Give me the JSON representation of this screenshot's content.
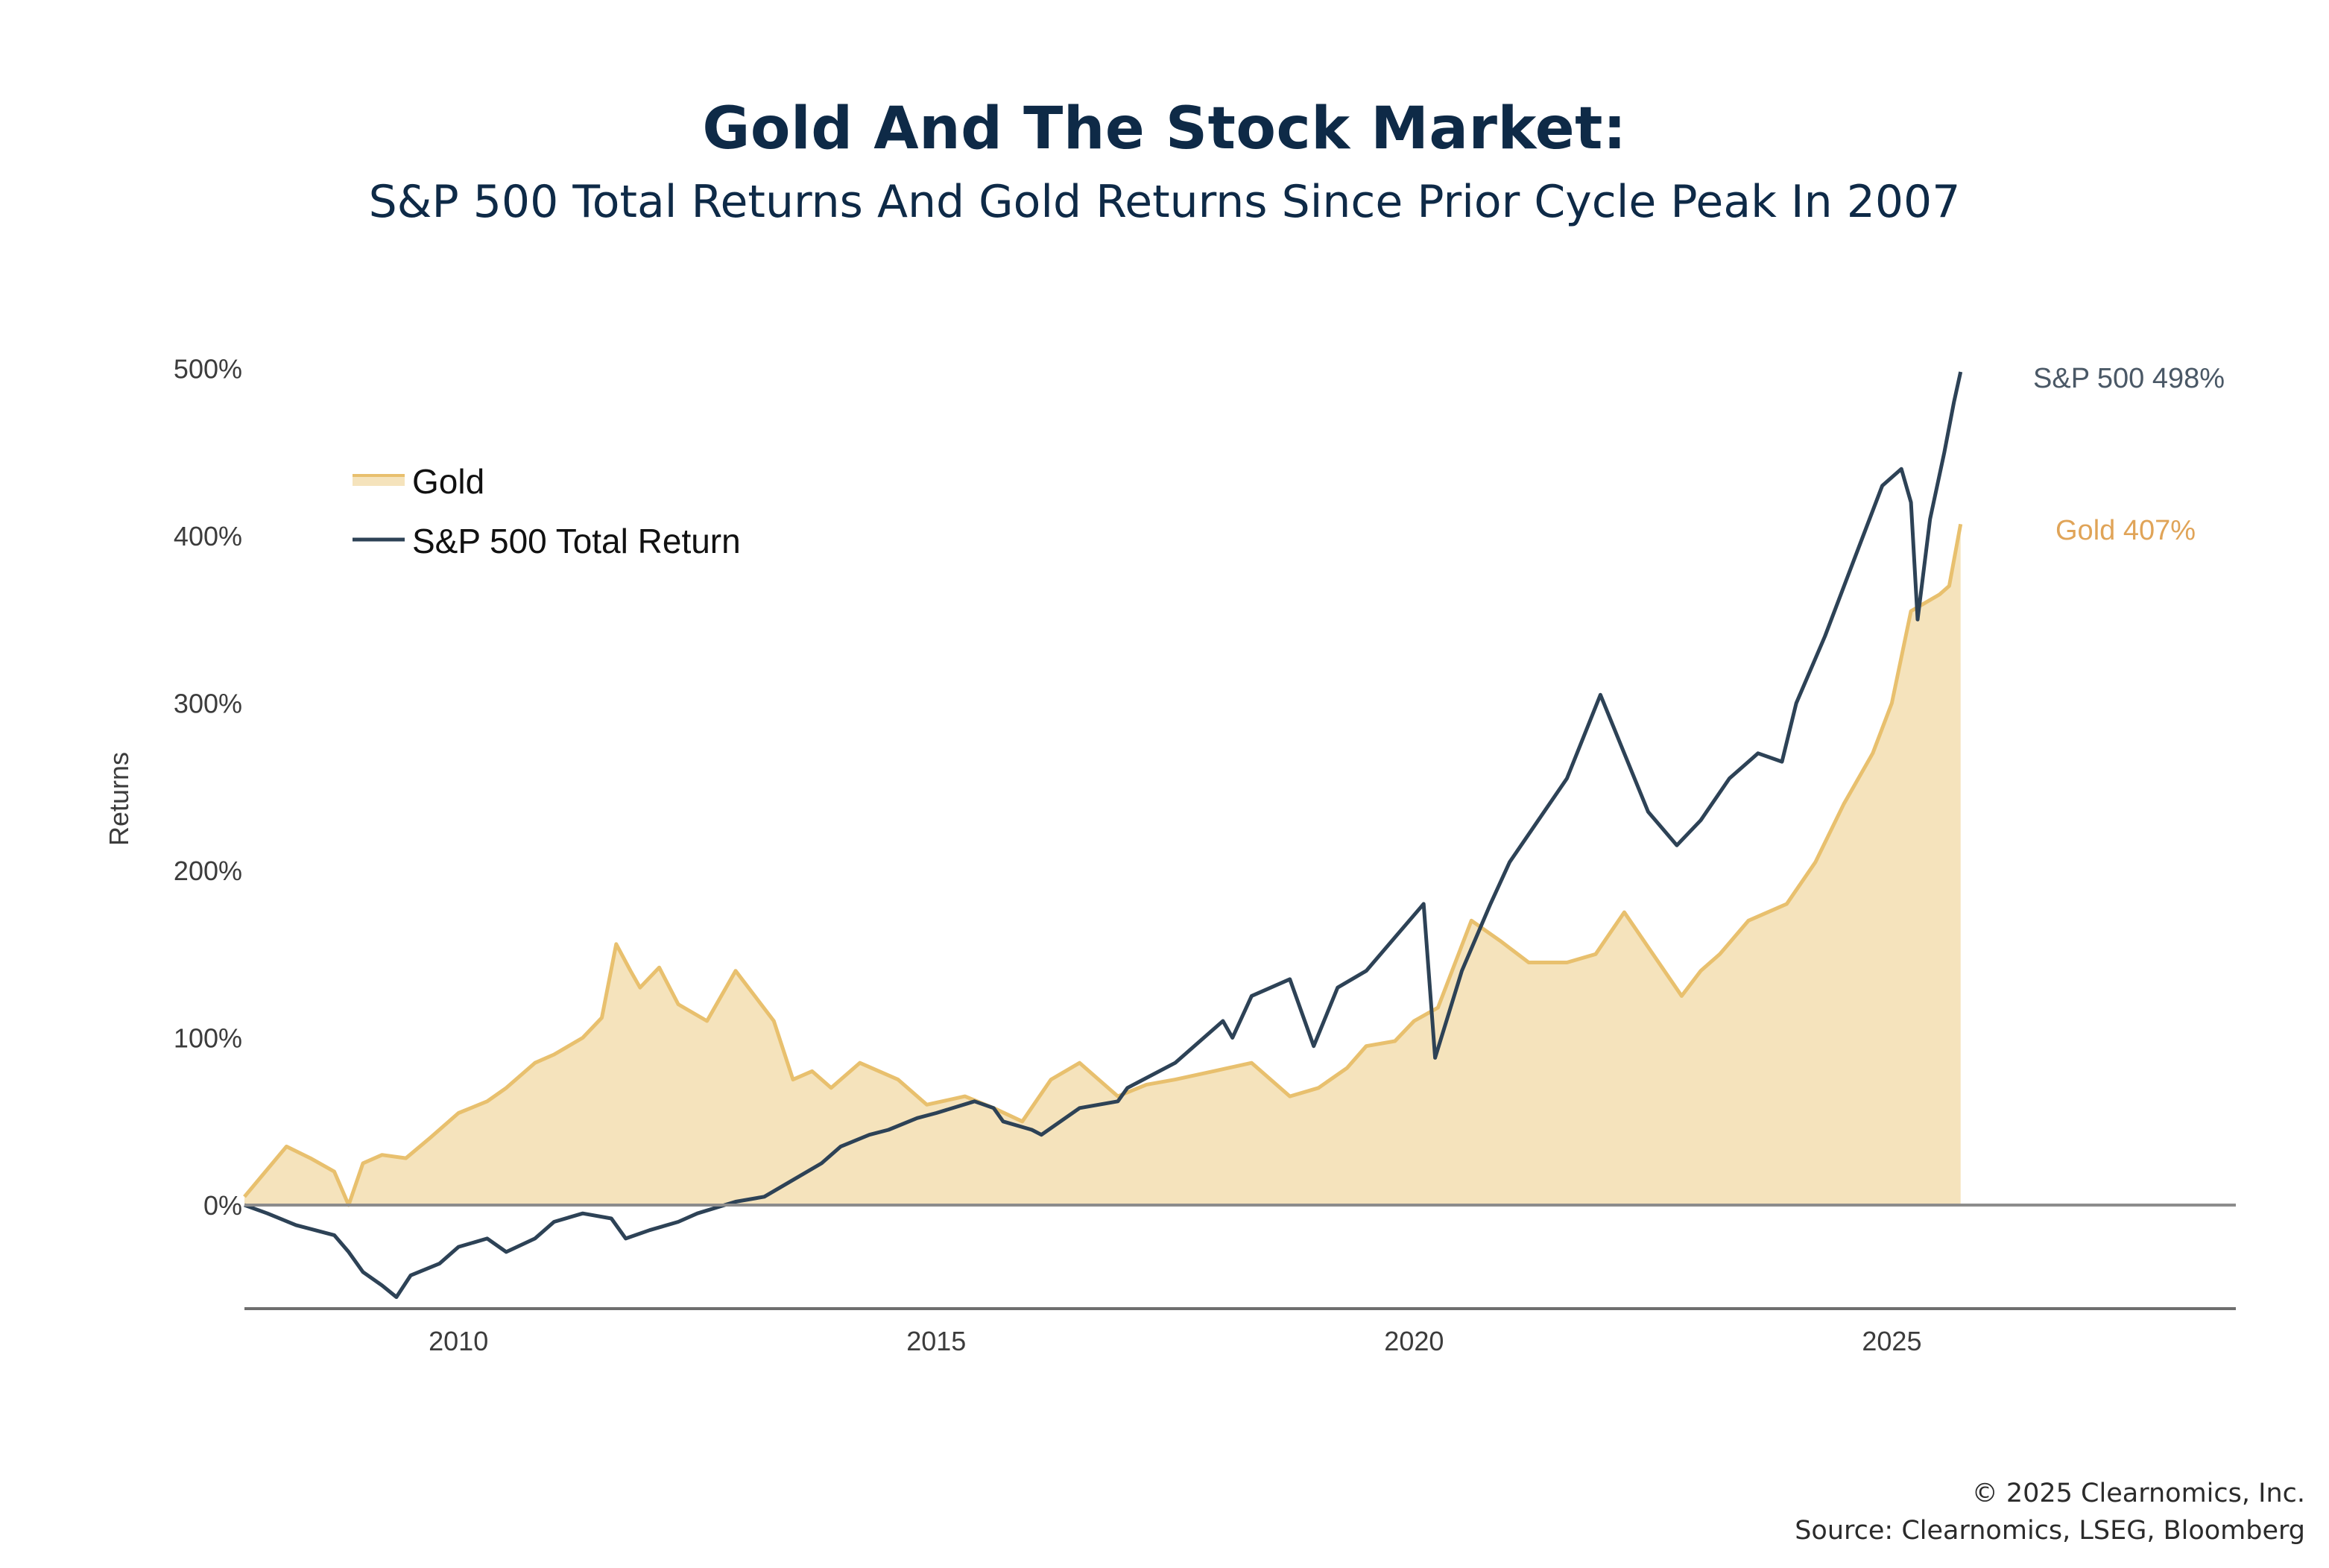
{
  "chart_data": {
    "type": "area",
    "title": "Gold And The Stock Market:",
    "subtitle": "S&P 500 Total Returns And Gold Returns Since Prior Cycle Peak In 2007",
    "xlabel": "",
    "ylabel": "Returns",
    "xlim": [
      2007.76,
      2028.6
    ],
    "ylim": [
      -58,
      520
    ],
    "x_ticks": [
      2010,
      2015,
      2020,
      2025
    ],
    "x_tick_labels": [
      "2010",
      "2015",
      "2020",
      "2025"
    ],
    "y_ticks": [
      0,
      100,
      200,
      300,
      400,
      500
    ],
    "y_tick_labels": [
      "0%",
      "100%",
      "200%",
      "300%",
      "400%",
      "500%"
    ],
    "grid": false,
    "legend": {
      "placement": "top-left",
      "entries": [
        "Gold",
        "S&P 500 Total Return"
      ]
    },
    "series": [
      {
        "name": "Gold",
        "kind": "area",
        "color": "#e8c06e",
        "fill": "#f5e3bc",
        "end_label": "Gold 407%",
        "end_label_color": "#e0a458",
        "x": [
          2007.76,
          2007.95,
          2008.2,
          2008.45,
          2008.7,
          2008.85,
          2009.0,
          2009.2,
          2009.45,
          2009.7,
          2010.0,
          2010.3,
          2010.5,
          2010.8,
          2011.0,
          2011.3,
          2011.5,
          2011.65,
          2011.8,
          2011.9,
          2012.1,
          2012.3,
          2012.6,
          2012.9,
          2013.1,
          2013.3,
          2013.5,
          2013.7,
          2013.9,
          2014.2,
          2014.6,
          2014.9,
          2015.3,
          2015.6,
          2015.9,
          2016.2,
          2016.5,
          2016.9,
          2017.2,
          2017.5,
          2017.9,
          2018.3,
          2018.7,
          2019.0,
          2019.3,
          2019.5,
          2019.8,
          2020.0,
          2020.25,
          2020.6,
          2020.9,
          2021.2,
          2021.6,
          2021.9,
          2022.2,
          2022.5,
          2022.8,
          2023.0,
          2023.2,
          2023.5,
          2023.9,
          2024.2,
          2024.5,
          2024.8,
          2025.0,
          2025.2,
          2025.35,
          2025.5,
          2025.6,
          2025.72
        ],
        "values": [
          5,
          18,
          35,
          28,
          20,
          0,
          25,
          30,
          28,
          40,
          55,
          62,
          70,
          85,
          90,
          100,
          112,
          156,
          140,
          130,
          142,
          120,
          110,
          140,
          125,
          110,
          75,
          80,
          70,
          85,
          75,
          60,
          65,
          58,
          50,
          75,
          85,
          65,
          72,
          75,
          80,
          85,
          65,
          70,
          82,
          95,
          98,
          110,
          118,
          170,
          158,
          145,
          145,
          150,
          175,
          150,
          125,
          140,
          150,
          170,
          180,
          205,
          240,
          270,
          300,
          355,
          360,
          365,
          370,
          407
        ]
      },
      {
        "name": "S&P 500 Total Return",
        "kind": "line",
        "color": "#2d4256",
        "end_label": "S&P 500 498%",
        "end_label_color": "#4a5866",
        "x": [
          2007.76,
          2008.0,
          2008.3,
          2008.5,
          2008.7,
          2008.85,
          2009.0,
          2009.2,
          2009.35,
          2009.5,
          2009.8,
          2010.0,
          2010.3,
          2010.5,
          2010.8,
          2011.0,
          2011.3,
          2011.6,
          2011.75,
          2012.0,
          2012.3,
          2012.5,
          2012.9,
          2013.2,
          2013.5,
          2013.8,
          2014.0,
          2014.3,
          2014.5,
          2014.8,
          2015.0,
          2015.4,
          2015.6,
          2015.7,
          2016.0,
          2016.1,
          2016.5,
          2016.9,
          2017.0,
          2017.5,
          2018.0,
          2018.1,
          2018.3,
          2018.7,
          2018.95,
          2019.2,
          2019.5,
          2019.8,
          2020.1,
          2020.22,
          2020.5,
          2020.8,
          2021.0,
          2021.3,
          2021.6,
          2021.95,
          2022.2,
          2022.45,
          2022.75,
          2023.0,
          2023.3,
          2023.6,
          2023.85,
          2024.0,
          2024.3,
          2024.6,
          2024.9,
          2025.1,
          2025.2,
          2025.27,
          2025.4,
          2025.55,
          2025.65,
          2025.72
        ],
        "values": [
          0,
          -5,
          -12,
          -15,
          -18,
          -28,
          -40,
          -48,
          -55,
          -42,
          -35,
          -25,
          -20,
          -28,
          -20,
          -10,
          -5,
          -8,
          -20,
          -15,
          -10,
          -5,
          2,
          5,
          15,
          25,
          35,
          42,
          45,
          52,
          55,
          62,
          58,
          50,
          45,
          42,
          58,
          62,
          70,
          85,
          110,
          100,
          125,
          135,
          95,
          130,
          140,
          160,
          180,
          88,
          140,
          180,
          205,
          230,
          255,
          305,
          270,
          235,
          215,
          230,
          255,
          270,
          265,
          300,
          340,
          385,
          430,
          440,
          420,
          350,
          410,
          450,
          480,
          498
        ]
      }
    ],
    "baseline": 0
  },
  "footer": {
    "copyright": "© 2025 Clearnomics, Inc.",
    "source": "Source: Clearnomics, LSEG, Bloomberg"
  }
}
